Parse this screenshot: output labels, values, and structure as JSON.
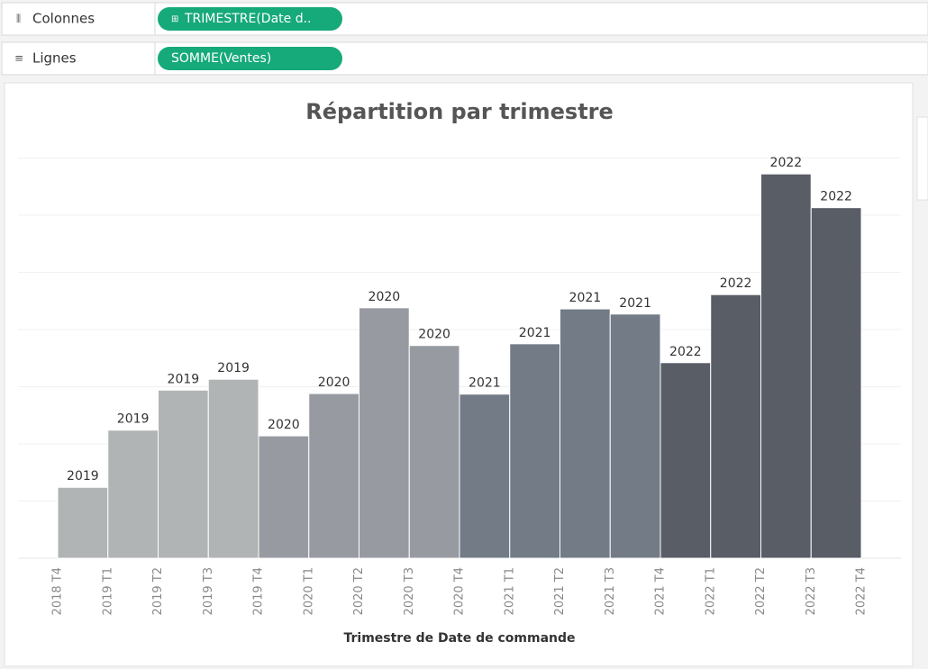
{
  "ui": {
    "columns_shelf": {
      "label": "Colonnes",
      "pill": "TRIMESTRE(Date d.."
    },
    "rows_shelf": {
      "label": "Lignes",
      "pill": "SOMME(Ventes)"
    }
  },
  "chart_data": {
    "type": "histogram",
    "title": "Répartition par trimestre",
    "x_label": "Trimestre de Date de commande",
    "bins": [
      "2018 T4",
      "2019 T1",
      "2019 T2",
      "2019 T3",
      "2019 T4",
      "2020 T1",
      "2020 T2",
      "2020 T3",
      "2020 T4",
      "2021 T1",
      "2021 T2",
      "2021 T3",
      "2021 T4",
      "2022 T1",
      "2022 T2",
      "2022 T3",
      "2022 T4"
    ],
    "values": [
      1.24,
      2.24,
      2.94,
      3.13,
      2.14,
      2.88,
      4.38,
      3.72,
      2.87,
      3.75,
      4.36,
      4.27,
      3.42,
      4.61,
      6.72,
      6.13
    ],
    "bar_labels": [
      "2019",
      "2019",
      "2019",
      "2019",
      "2020",
      "2020",
      "2020",
      "2020",
      "2021",
      "2021",
      "2021",
      "2021",
      "2022",
      "2022",
      "2022",
      "2022"
    ],
    "colors": [
      "#b1b4b4",
      "#b1b4b4",
      "#b1b4b4",
      "#b1b4b4",
      "#979ba1",
      "#979ba1",
      "#979ba1",
      "#979ba1",
      "#737b87",
      "#737b87",
      "#737b87",
      "#737b87",
      "#585d66",
      "#585d66",
      "#585d66",
      "#585d66"
    ],
    "ylim": [
      0,
      7.4
    ],
    "grid_lines": [
      1,
      2,
      3,
      4,
      5,
      6,
      7
    ],
    "grid": true
  }
}
